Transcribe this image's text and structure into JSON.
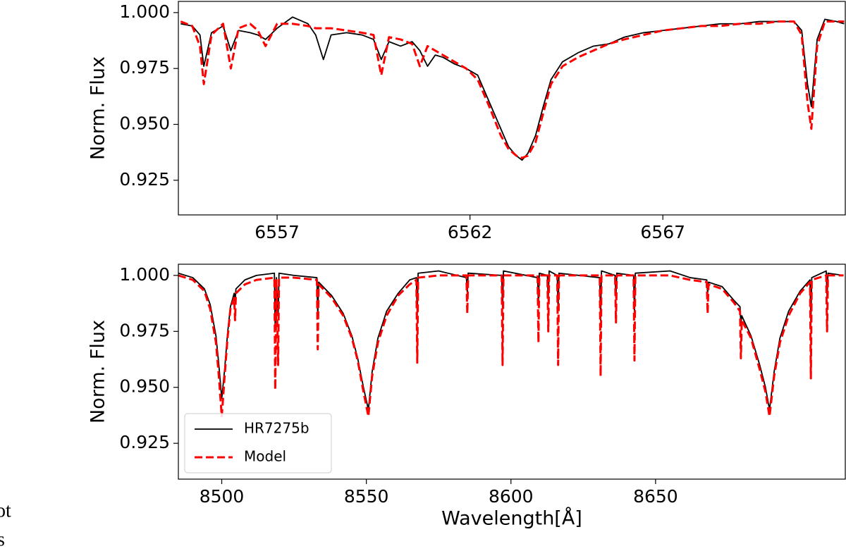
{
  "chart_data": [
    {
      "type": "line",
      "ylabel": "Norm. Flux",
      "xlim": [
        6554.44,
        6571.73
      ],
      "ylim": [
        0.9095,
        1.005
      ],
      "xticks": [
        6557,
        6562,
        6567
      ],
      "yticks": [
        {
          "value": 1.0,
          "label": "1.000"
        },
        0.975,
        {
          "value": 0.95,
          "label": "0.950"
        },
        0.925
      ],
      "x": [
        6554.5,
        6554.8,
        6555.0,
        6555.1,
        6555.3,
        6555.6,
        6555.8,
        6556.0,
        6556.3,
        6556.5,
        6556.7,
        6557.0,
        6557.4,
        6557.8,
        6558.0,
        6558.2,
        6558.4,
        6558.8,
        6559.2,
        6559.5,
        6559.7,
        6559.9,
        6560.2,
        6560.5,
        6560.7,
        6560.9,
        6561.1,
        6561.3,
        6561.6,
        6561.9,
        6562.2,
        6562.5,
        6562.8,
        6563.0,
        6563.2,
        6563.35,
        6563.5,
        6563.7,
        6563.9,
        6564.1,
        6564.4,
        6564.8,
        6565.2,
        6565.6,
        6566.0,
        6566.5,
        6567.0,
        6567.5,
        6568.0,
        6568.5,
        6569.0,
        6569.5,
        6570.0,
        6570.4,
        6570.6,
        6570.75,
        6570.85,
        6571.0,
        6571.2,
        6571.5,
        6571.7
      ],
      "series": [
        {
          "name": "HR7275b",
          "color": "#000000",
          "linestyle": "solid",
          "values": [
            0.995,
            0.994,
            0.99,
            0.976,
            0.991,
            0.994,
            0.983,
            0.992,
            0.991,
            0.99,
            0.988,
            0.993,
            0.998,
            0.995,
            0.99,
            0.979,
            0.99,
            0.991,
            0.99,
            0.988,
            0.979,
            0.987,
            0.985,
            0.987,
            0.983,
            0.976,
            0.981,
            0.98,
            0.977,
            0.975,
            0.972,
            0.96,
            0.948,
            0.94,
            0.936,
            0.934,
            0.937,
            0.945,
            0.958,
            0.97,
            0.978,
            0.982,
            0.985,
            0.986,
            0.989,
            0.991,
            0.992,
            0.993,
            0.994,
            0.995,
            0.995,
            0.996,
            0.996,
            0.996,
            0.992,
            0.968,
            0.958,
            0.988,
            0.997,
            0.996,
            0.995
          ]
        },
        {
          "name": "Model",
          "color": "#ff0000",
          "linestyle": "dashed",
          "values": [
            0.996,
            0.994,
            0.985,
            0.968,
            0.99,
            0.995,
            0.975,
            0.993,
            0.995,
            0.992,
            0.985,
            0.995,
            0.995,
            0.994,
            0.993,
            0.993,
            0.993,
            0.992,
            0.991,
            0.99,
            0.972,
            0.989,
            0.988,
            0.986,
            0.976,
            0.985,
            0.983,
            0.981,
            0.978,
            0.975,
            0.97,
            0.958,
            0.945,
            0.939,
            0.936,
            0.935,
            0.936,
            0.942,
            0.955,
            0.968,
            0.976,
            0.98,
            0.983,
            0.986,
            0.988,
            0.99,
            0.992,
            0.993,
            0.994,
            0.994,
            0.995,
            0.995,
            0.996,
            0.996,
            0.99,
            0.96,
            0.948,
            0.985,
            0.996,
            0.996,
            0.996
          ]
        }
      ]
    },
    {
      "type": "line",
      "ylabel": "Norm. Flux",
      "xlabel": "Wavelength[Å]",
      "legend": "lower left",
      "xlim": [
        8485,
        8715.6
      ],
      "ylim": [
        0.909,
        1.005
      ],
      "xticks": [
        8500,
        8550,
        8600,
        8650
      ],
      "yticks": [
        {
          "value": 1.0,
          "label": "1.000"
        },
        0.975,
        {
          "value": 0.95,
          "label": "0.950"
        },
        0.925
      ],
      "x": [
        8485,
        8490,
        8494,
        8496,
        8498,
        8499,
        8500,
        8501,
        8502,
        8503,
        8504.3,
        8504.6,
        8504.9,
        8508,
        8512,
        8518.2,
        8518.5,
        8518.9,
        8519.5,
        8519.8,
        8525,
        8532.9,
        8533.2,
        8533.5,
        8538,
        8542,
        8545,
        8547,
        8549,
        8550.7,
        8552,
        8554,
        8557,
        8561,
        8565,
        8567.3,
        8567.6,
        8567.9,
        8575,
        8584.6,
        8584.9,
        8585.2,
        8596.8,
        8597.1,
        8597.4,
        8609.2,
        8609.5,
        8609.8,
        8612.6,
        8612.9,
        8613.2,
        8616.0,
        8616.3,
        8616.6,
        8630.7,
        8631.0,
        8631.3,
        8636.0,
        8636.3,
        8636.6,
        8642.4,
        8642.7,
        8643.0,
        8655,
        8662,
        8667.7,
        8668.0,
        8668.3,
        8673,
        8677,
        8679.2,
        8679.5,
        8679.8,
        8683,
        8686,
        8688,
        8689.4,
        8691,
        8693,
        8696,
        8700,
        8703.4,
        8703.7,
        8704.0,
        8709.0,
        8709.3,
        8709.6,
        8715
      ],
      "series": [
        {
          "name": "HR7275b",
          "color": "#000000",
          "linestyle": "solid",
          "values": [
            1.001,
            0.999,
            0.994,
            0.987,
            0.973,
            0.96,
            0.945,
            0.958,
            0.974,
            0.986,
            0.992,
            0.988,
            0.994,
            0.998,
            1.0,
            1.001,
            0.975,
            0.999,
            0.982,
            1.001,
            1.0,
            0.999,
            0.982,
            0.997,
            0.991,
            0.983,
            0.973,
            0.963,
            0.95,
            0.94,
            0.957,
            0.972,
            0.984,
            0.992,
            0.998,
            0.999,
            0.982,
            1.001,
            1.002,
            0.999,
            0.992,
            1.001,
            1.0,
            0.985,
            1.002,
            0.999,
            0.987,
            1.001,
            1.0,
            0.989,
            1.002,
            1.0,
            0.984,
            1.001,
            0.999,
            0.98,
            1.002,
            1.0,
            0.99,
            1.001,
            1.0,
            0.983,
            1.001,
            1.002,
            0.999,
            0.998,
            0.992,
            0.997,
            0.995,
            0.989,
            0.986,
            0.978,
            0.982,
            0.973,
            0.96,
            0.95,
            0.94,
            0.957,
            0.972,
            0.984,
            0.993,
            0.998,
            0.978,
            0.999,
            1.002,
            0.99,
            1.001,
            1.0
          ]
        },
        {
          "name": "Model",
          "color": "#ff0000",
          "linestyle": "dashed",
          "values": [
            1.0,
            0.998,
            0.993,
            0.985,
            0.97,
            0.955,
            0.937,
            0.955,
            0.972,
            0.985,
            0.99,
            0.98,
            0.992,
            0.996,
            0.998,
            0.999,
            0.949,
            0.998,
            0.96,
            0.999,
            0.999,
            0.998,
            0.967,
            0.996,
            0.99,
            0.982,
            0.972,
            0.962,
            0.948,
            0.937,
            0.955,
            0.97,
            0.982,
            0.991,
            0.996,
            0.998,
            0.961,
            0.999,
            1.0,
            1.0,
            0.983,
            1.0,
            1.0,
            0.96,
            1.0,
            1.0,
            0.97,
            1.0,
            1.0,
            0.975,
            1.0,
            1.0,
            0.96,
            1.0,
            1.0,
            0.955,
            1.0,
            1.0,
            0.979,
            1.0,
            1.0,
            0.962,
            1.0,
            1.0,
            0.998,
            0.997,
            0.983,
            0.996,
            0.994,
            0.988,
            0.984,
            0.963,
            0.98,
            0.972,
            0.958,
            0.948,
            0.937,
            0.955,
            0.97,
            0.982,
            0.992,
            0.997,
            0.954,
            0.998,
            1.0,
            0.975,
            1.0,
            1.0
          ]
        }
      ]
    }
  ],
  "margin_text": [
    "ot",
    "s"
  ]
}
